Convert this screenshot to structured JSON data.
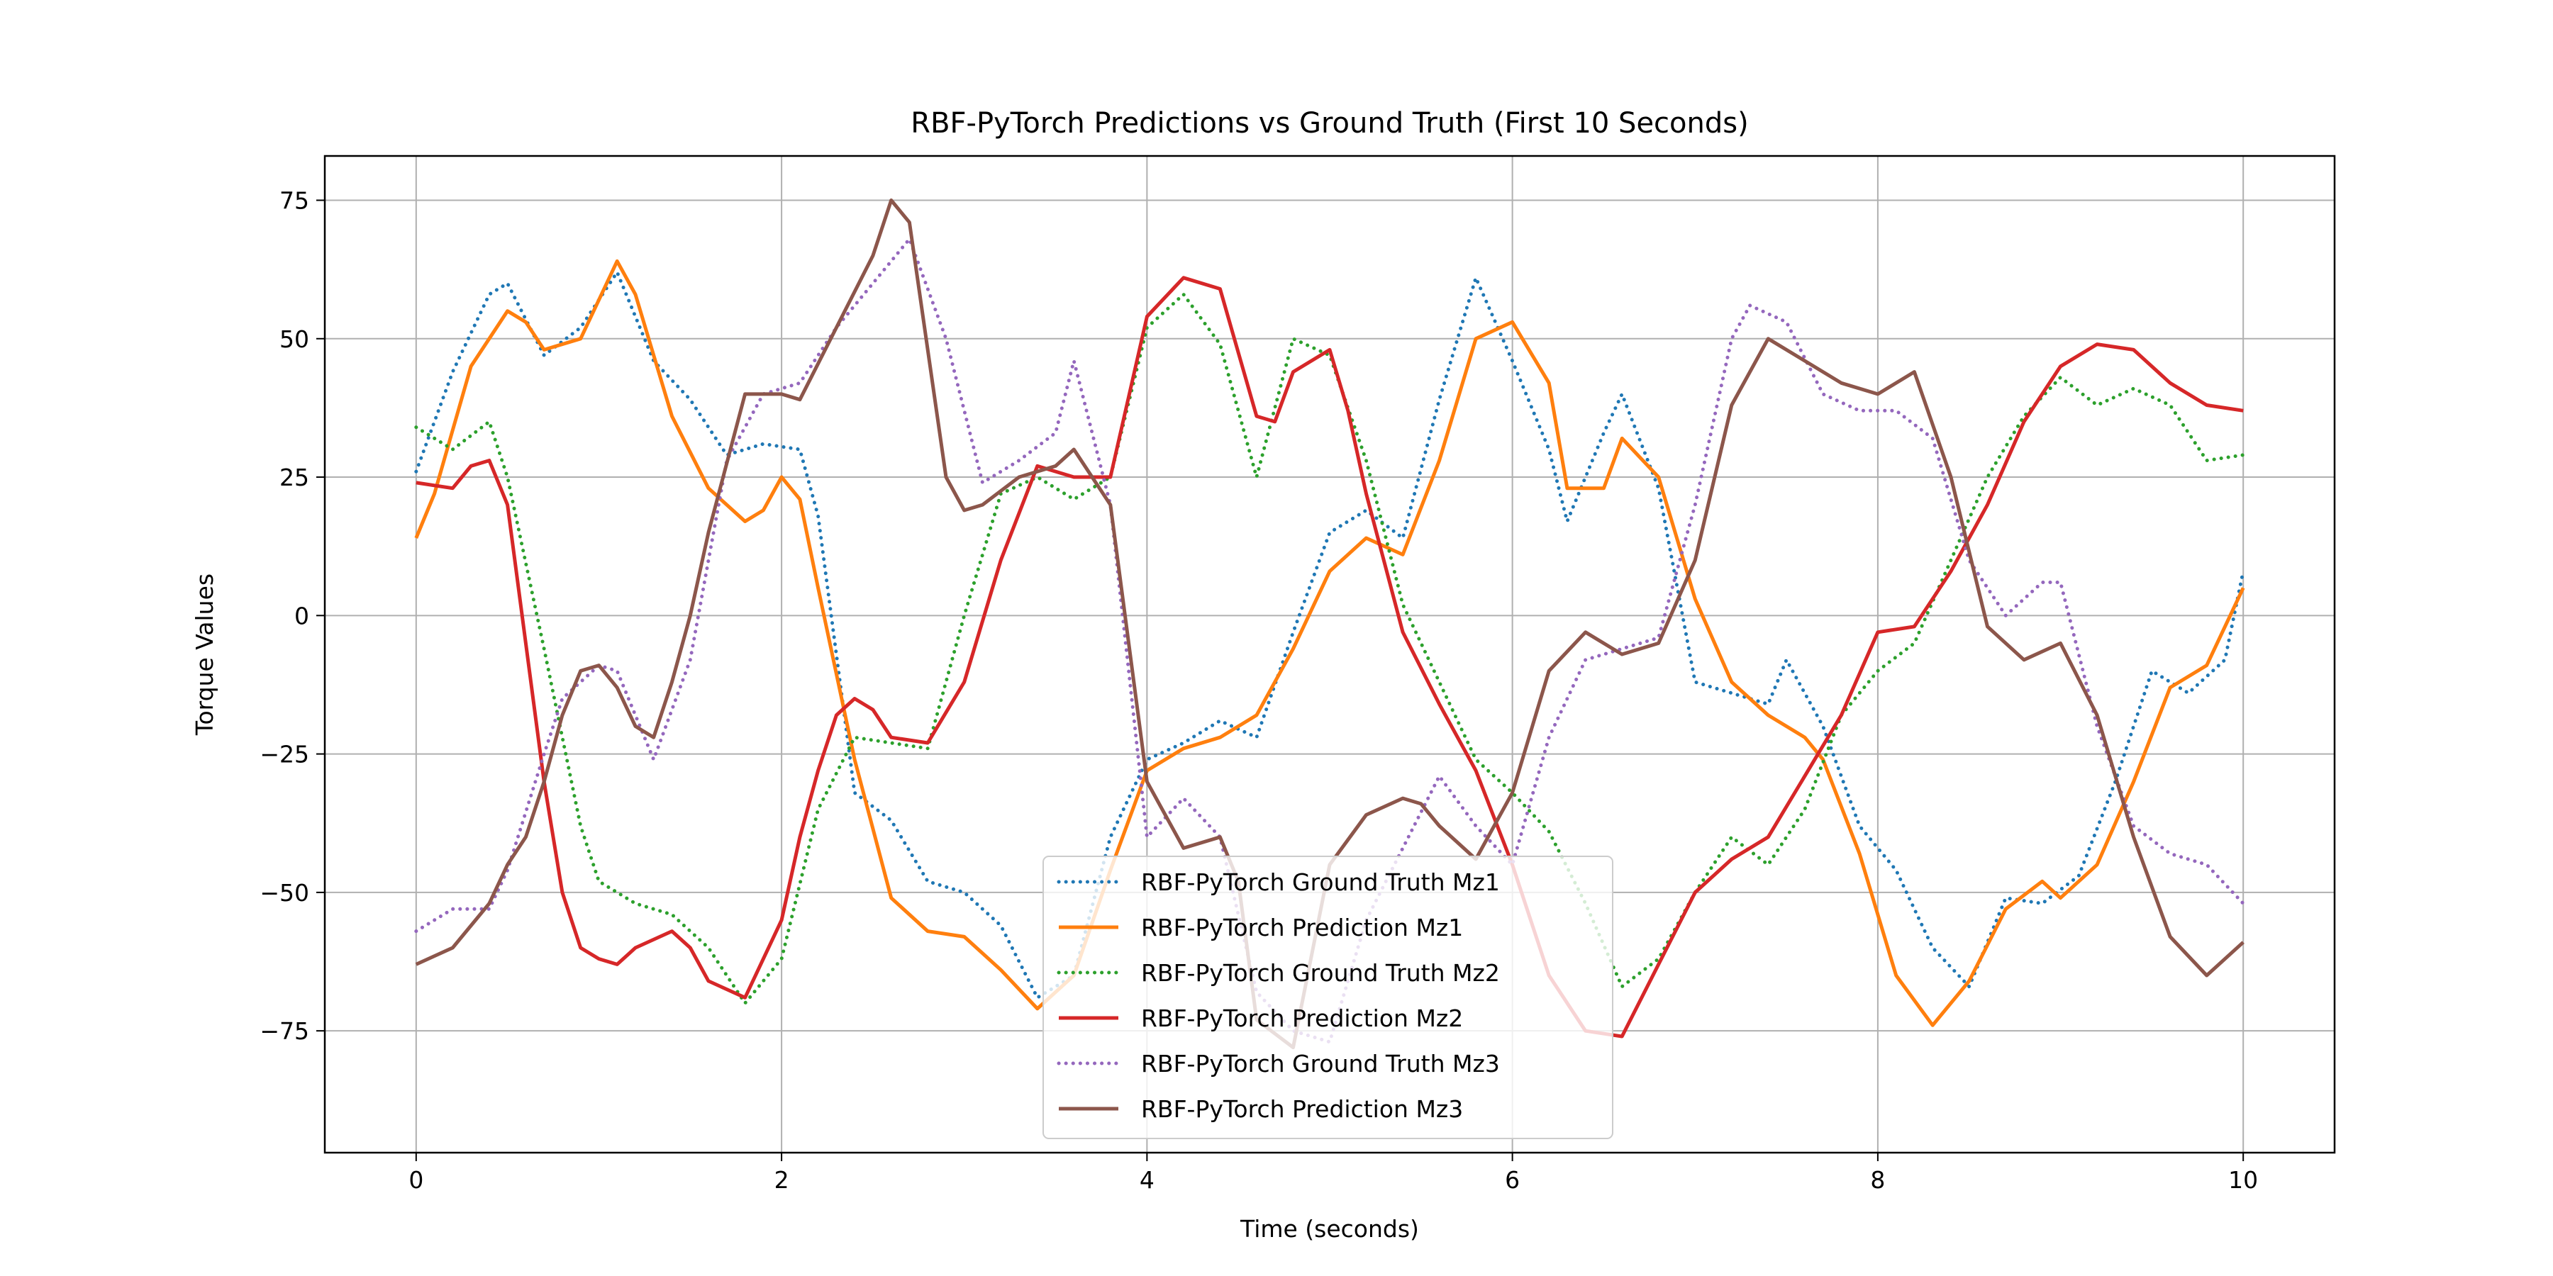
{
  "chart_data": {
    "type": "line",
    "title": "RBF-PyTorch Predictions vs Ground Truth (First 10 Seconds)",
    "xlabel": "Time (seconds)",
    "ylabel": "Torque Values",
    "xlim": [
      -0.5,
      10.5
    ],
    "ylim": [
      -97,
      83
    ],
    "xticks": [
      0,
      2,
      4,
      6,
      8,
      10
    ],
    "yticks": [
      -75,
      -50,
      -25,
      0,
      25,
      50,
      75
    ],
    "xtick_labels": [
      "0",
      "2",
      "4",
      "6",
      "8",
      "10"
    ],
    "ytick_labels": [
      "−75",
      "−50",
      "−25",
      "0",
      "25",
      "50",
      "75"
    ],
    "grid": true,
    "legend_position": "lower-center",
    "series": [
      {
        "name": "RBF-PyTorch Ground Truth Mz1",
        "color": "#1f77b4",
        "style": "dotted",
        "x": [
          0,
          0.2,
          0.4,
          0.5,
          0.7,
          0.9,
          1.1,
          1.3,
          1.5,
          1.7,
          1.9,
          2.1,
          2.2,
          2.4,
          2.6,
          2.8,
          3.0,
          3.2,
          3.4,
          3.6,
          3.8,
          4.0,
          4.2,
          4.4,
          4.6,
          4.8,
          5.0,
          5.2,
          5.4,
          5.6,
          5.8,
          6.0,
          6.2,
          6.3,
          6.5,
          6.6,
          6.8,
          7.0,
          7.2,
          7.4,
          7.5,
          7.7,
          7.9,
          8.1,
          8.3,
          8.5,
          8.7,
          8.9,
          9.1,
          9.3,
          9.5,
          9.7,
          9.9,
          10.0
        ],
        "y": [
          26,
          44,
          58,
          60,
          47,
          52,
          62,
          46,
          39,
          29,
          31,
          30,
          18,
          -32,
          -37,
          -48,
          -50,
          -56,
          -69,
          -65,
          -40,
          -26,
          -23,
          -19,
          -22,
          -3,
          15,
          19,
          14,
          39,
          61,
          46,
          30,
          17,
          33,
          40,
          23,
          -12,
          -14,
          -16,
          -8,
          -20,
          -38,
          -46,
          -60,
          -67,
          -51,
          -52,
          -47,
          -30,
          -10,
          -14,
          -8,
          8
        ]
      },
      {
        "name": "RBF-PyTorch Prediction Mz1",
        "color": "#ff7f0e",
        "style": "solid",
        "x": [
          0,
          0.1,
          0.3,
          0.5,
          0.6,
          0.7,
          0.9,
          1.0,
          1.1,
          1.2,
          1.4,
          1.6,
          1.8,
          1.9,
          2.0,
          2.1,
          2.2,
          2.4,
          2.6,
          2.8,
          3.0,
          3.2,
          3.4,
          3.6,
          3.8,
          4.0,
          4.2,
          4.4,
          4.6,
          4.8,
          5.0,
          5.2,
          5.4,
          5.6,
          5.8,
          6.0,
          6.2,
          6.3,
          6.5,
          6.6,
          6.8,
          7.0,
          7.2,
          7.4,
          7.6,
          7.7,
          7.9,
          8.1,
          8.3,
          8.5,
          8.7,
          8.9,
          9.0,
          9.2,
          9.4,
          9.6,
          9.8,
          10.0
        ],
        "y": [
          14,
          22,
          45,
          55,
          53,
          48,
          50,
          57,
          64,
          58,
          36,
          23,
          17,
          19,
          25,
          21,
          5,
          -26,
          -51,
          -57,
          -58,
          -64,
          -71,
          -65,
          -46,
          -28,
          -24,
          -22,
          -18,
          -6,
          8,
          14,
          11,
          28,
          50,
          53,
          42,
          23,
          23,
          32,
          25,
          3,
          -12,
          -18,
          -22,
          -26,
          -43,
          -65,
          -74,
          -66,
          -53,
          -48,
          -51,
          -45,
          -30,
          -13,
          -9,
          5
        ]
      },
      {
        "name": "RBF-PyTorch Ground Truth Mz2",
        "color": "#2ca02c",
        "style": "dotted",
        "x": [
          0,
          0.2,
          0.4,
          0.5,
          0.7,
          0.9,
          1.0,
          1.2,
          1.4,
          1.6,
          1.8,
          2.0,
          2.2,
          2.4,
          2.6,
          2.8,
          3.0,
          3.2,
          3.4,
          3.6,
          3.8,
          4.0,
          4.2,
          4.4,
          4.6,
          4.8,
          5.0,
          5.2,
          5.4,
          5.6,
          5.8,
          6.0,
          6.2,
          6.4,
          6.6,
          6.8,
          7.0,
          7.2,
          7.4,
          7.6,
          7.8,
          8.0,
          8.2,
          8.4,
          8.6,
          8.8,
          9.0,
          9.2,
          9.4,
          9.6,
          9.8,
          10.0
        ],
        "y": [
          34,
          30,
          35,
          25,
          -6,
          -38,
          -48,
          -52,
          -54,
          -60,
          -70,
          -62,
          -35,
          -22,
          -23,
          -24,
          0,
          22,
          25,
          21,
          25,
          52,
          58,
          49,
          25,
          50,
          47,
          28,
          2,
          -12,
          -26,
          -32,
          -39,
          -52,
          -67,
          -62,
          -50,
          -40,
          -45,
          -35,
          -18,
          -10,
          -5,
          10,
          25,
          36,
          43,
          38,
          41,
          38,
          28,
          29
        ]
      },
      {
        "name": "RBF-PyTorch Prediction Mz2",
        "color": "#d62728",
        "style": "solid",
        "x": [
          0,
          0.2,
          0.3,
          0.4,
          0.5,
          0.6,
          0.7,
          0.8,
          0.9,
          1.0,
          1.1,
          1.2,
          1.4,
          1.5,
          1.6,
          1.8,
          2.0,
          2.1,
          2.2,
          2.3,
          2.4,
          2.5,
          2.6,
          2.8,
          3.0,
          3.2,
          3.4,
          3.6,
          3.8,
          4.0,
          4.2,
          4.4,
          4.6,
          4.7,
          4.8,
          5.0,
          5.1,
          5.2,
          5.4,
          5.6,
          5.8,
          6.0,
          6.2,
          6.4,
          6.6,
          6.8,
          7.0,
          7.2,
          7.4,
          7.6,
          7.8,
          8.0,
          8.2,
          8.4,
          8.6,
          8.8,
          9.0,
          9.2,
          9.4,
          9.6,
          9.8,
          10.0
        ],
        "y": [
          24,
          23,
          27,
          28,
          20,
          -5,
          -30,
          -50,
          -60,
          -62,
          -63,
          -60,
          -57,
          -60,
          -66,
          -69,
          -55,
          -40,
          -28,
          -18,
          -15,
          -17,
          -22,
          -23,
          -12,
          10,
          27,
          25,
          25,
          54,
          61,
          59,
          36,
          35,
          44,
          48,
          37,
          22,
          -3,
          -16,
          -28,
          -45,
          -65,
          -75,
          -76,
          -63,
          -50,
          -44,
          -40,
          -29,
          -18,
          -3,
          -2,
          8,
          20,
          35,
          45,
          49,
          48,
          42,
          38,
          37
        ]
      },
      {
        "name": "RBF-PyTorch Ground Truth Mz3",
        "color": "#9467bd",
        "style": "dotted",
        "x": [
          0,
          0.2,
          0.4,
          0.5,
          0.7,
          0.8,
          1.0,
          1.1,
          1.3,
          1.5,
          1.7,
          1.9,
          2.1,
          2.3,
          2.5,
          2.7,
          2.9,
          3.1,
          3.3,
          3.5,
          3.6,
          3.8,
          4.0,
          4.2,
          4.4,
          4.6,
          4.8,
          5.0,
          5.2,
          5.4,
          5.6,
          5.8,
          6.0,
          6.2,
          6.4,
          6.6,
          6.8,
          7.0,
          7.2,
          7.3,
          7.5,
          7.7,
          7.9,
          8.1,
          8.3,
          8.5,
          8.7,
          8.9,
          9.0,
          9.2,
          9.4,
          9.6,
          9.8,
          10.0
        ],
        "y": [
          -57,
          -53,
          -53,
          -46,
          -25,
          -15,
          -9,
          -10,
          -26,
          -8,
          28,
          40,
          42,
          52,
          60,
          68,
          50,
          24,
          28,
          33,
          46,
          20,
          -40,
          -33,
          -40,
          -68,
          -75,
          -77,
          -55,
          -42,
          -29,
          -38,
          -45,
          -22,
          -8,
          -6,
          -4,
          20,
          50,
          56,
          53,
          40,
          37,
          37,
          32,
          10,
          0,
          6,
          6,
          -20,
          -38,
          -43,
          -45,
          -52
        ]
      },
      {
        "name": "RBF-PyTorch Prediction Mz3",
        "color": "#8c564b",
        "style": "solid",
        "x": [
          0,
          0.2,
          0.4,
          0.5,
          0.6,
          0.7,
          0.8,
          0.9,
          1.0,
          1.1,
          1.2,
          1.3,
          1.4,
          1.5,
          1.6,
          1.8,
          2.0,
          2.1,
          2.3,
          2.5,
          2.6,
          2.7,
          2.8,
          2.9,
          3.0,
          3.1,
          3.3,
          3.5,
          3.6,
          3.8,
          4.0,
          4.2,
          4.4,
          4.5,
          4.6,
          4.8,
          5.0,
          5.2,
          5.4,
          5.5,
          5.6,
          5.8,
          6.0,
          6.2,
          6.4,
          6.6,
          6.8,
          7.0,
          7.2,
          7.4,
          7.6,
          7.8,
          8.0,
          8.2,
          8.4,
          8.6,
          8.8,
          9.0,
          9.2,
          9.4,
          9.6,
          9.8,
          10.0
        ],
        "y": [
          -63,
          -60,
          -52,
          -45,
          -40,
          -30,
          -18,
          -10,
          -9,
          -13,
          -20,
          -22,
          -12,
          0,
          15,
          40,
          40,
          39,
          52,
          65,
          75,
          71,
          48,
          25,
          19,
          20,
          25,
          27,
          30,
          20,
          -30,
          -42,
          -40,
          -48,
          -73,
          -78,
          -45,
          -36,
          -33,
          -34,
          -38,
          -44,
          -32,
          -10,
          -3,
          -7,
          -5,
          10,
          38,
          50,
          46,
          42,
          40,
          44,
          25,
          -2,
          -8,
          -5,
          -18,
          -40,
          -58,
          -65,
          -59
        ]
      }
    ]
  }
}
